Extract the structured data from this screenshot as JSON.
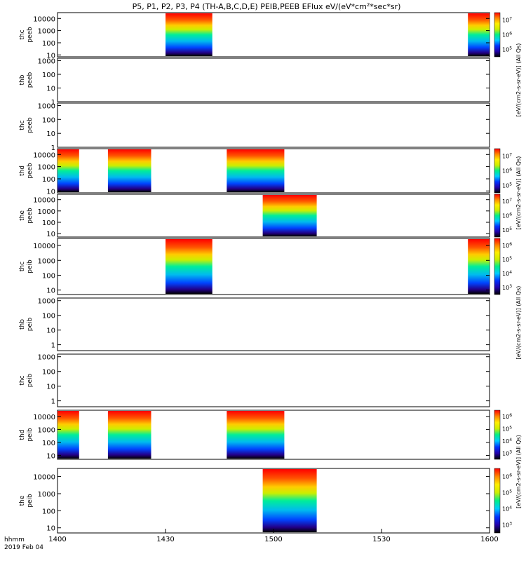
{
  "title": "P5, P1, P2, P3, P4 (TH-A,B,C,D,E) PEIB,PEEB EFlux eV/(eV*cm",
  "title_sup": "2",
  "title_tail": "*sec*sr)",
  "colorbar_labels": [
    "[eV/(cm2-s-sr-eV)] (All Qs)",
    "[eV/(cm2-s-sr-eV)] (All Qs)",
    "[eV/(cm2-s-sr-eV)] (All Qs)",
    "[eV/(cm2-s-sr-eV)] (All Qs)"
  ],
  "footer": {
    "time_format": "hhmm",
    "date": "2019 Feb 04"
  },
  "chart_data": {
    "type": "heatmap",
    "x_ticks": [
      "1400",
      "1430",
      "1500",
      "1530",
      "1600"
    ],
    "xlim": [
      "14:00",
      "16:00"
    ],
    "y_scale": "log",
    "panels": [
      {
        "label_line1": "thc",
        "label_line2": "peeb",
        "ylim": [
          7,
          30000
        ],
        "y_ticks": [
          "10",
          "100",
          "1000",
          "10000"
        ],
        "data_intervals": [
          {
            "start": "14:30",
            "end": "14:43"
          },
          {
            "start": "15:54",
            "end": "16:00"
          }
        ],
        "colorbar": {
          "ticks": [
            "10^5",
            "10^6",
            "10^7"
          ]
        }
      },
      {
        "label_line1": "thb",
        "label_line2": "peeb",
        "ylim": [
          1,
          1500
        ],
        "y_ticks": [
          "1",
          "10",
          "100",
          "1000"
        ],
        "data_intervals": []
      },
      {
        "label_line1": "thc",
        "label_line2": "peeb",
        "ylim": [
          1,
          1500
        ],
        "y_ticks": [
          "1",
          "10",
          "100",
          "1000"
        ],
        "data_intervals": []
      },
      {
        "label_line1": "thd",
        "label_line2": "peeb",
        "ylim": [
          7,
          30000
        ],
        "y_ticks": [
          "10",
          "100",
          "1000",
          "10000"
        ],
        "data_intervals": [
          {
            "start": "14:00",
            "end": "14:06"
          },
          {
            "start": "14:14",
            "end": "14:26"
          },
          {
            "start": "14:47",
            "end": "15:03"
          }
        ],
        "colorbar": {
          "ticks": [
            "10^5",
            "10^6",
            "10^7"
          ]
        }
      },
      {
        "label_line1": "the",
        "label_line2": "peeb",
        "ylim": [
          5,
          30000
        ],
        "y_ticks": [
          "10",
          "100",
          "1000",
          "10000"
        ],
        "data_intervals": [
          {
            "start": "14:57",
            "end": "15:12"
          }
        ],
        "colorbar": {
          "ticks": [
            "10^5",
            "10^6",
            "10^7"
          ]
        }
      },
      {
        "label_line1": "thc",
        "label_line2": "peib",
        "ylim": [
          5,
          30000
        ],
        "y_ticks": [
          "10",
          "100",
          "1000",
          "10000"
        ],
        "data_intervals": [
          {
            "start": "14:30",
            "end": "14:43"
          },
          {
            "start": "15:54",
            "end": "16:00"
          }
        ],
        "colorbar": {
          "ticks": [
            "10^3",
            "10^4",
            "10^5",
            "10^6"
          ]
        }
      },
      {
        "label_line1": "thb",
        "label_line2": "peib",
        "ylim": [
          0.4,
          1500
        ],
        "y_ticks": [
          "1",
          "10",
          "100",
          "1000"
        ],
        "data_intervals": []
      },
      {
        "label_line1": "thc",
        "label_line2": "peib",
        "ylim": [
          0.4,
          1500
        ],
        "y_ticks": [
          "1",
          "10",
          "100",
          "1000"
        ],
        "data_intervals": []
      },
      {
        "label_line1": "thd",
        "label_line2": "peib",
        "ylim": [
          5,
          30000
        ],
        "y_ticks": [
          "10",
          "100",
          "1000",
          "10000"
        ],
        "data_intervals": [
          {
            "start": "14:00",
            "end": "14:06"
          },
          {
            "start": "14:14",
            "end": "14:26"
          },
          {
            "start": "14:47",
            "end": "15:03"
          }
        ],
        "colorbar": {
          "ticks": [
            "10^3",
            "10^4",
            "10^5",
            "10^6"
          ]
        }
      },
      {
        "label_line1": "the",
        "label_line2": "peib",
        "ylim": [
          5,
          30000
        ],
        "y_ticks": [
          "10",
          "100",
          "1000",
          "10000"
        ],
        "data_intervals": [
          {
            "start": "14:57",
            "end": "15:12"
          }
        ],
        "colorbar": {
          "ticks": [
            "10^3",
            "10^4",
            "10^5",
            "10^6"
          ]
        }
      }
    ],
    "colormap": [
      "#000000",
      "#2200aa",
      "#0033ff",
      "#00ccff",
      "#00ee88",
      "#ccee00",
      "#ffee00",
      "#ff8800",
      "#ff0000"
    ]
  }
}
